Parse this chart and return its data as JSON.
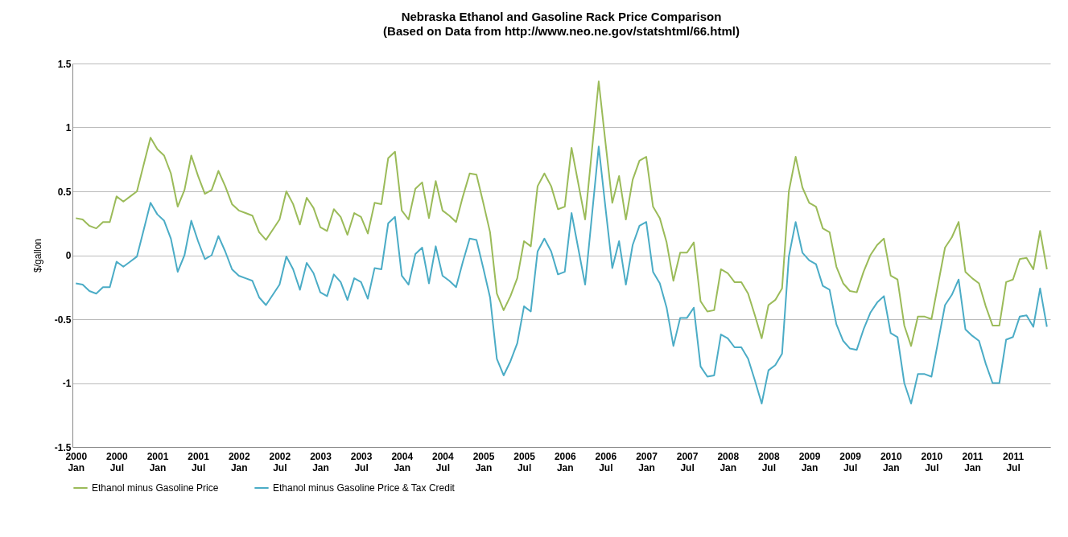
{
  "chart_data": {
    "type": "line",
    "title": "Nebraska Ethanol and Gasoline Rack Price Comparison",
    "subtitle": "(Based on Data from http://www.neo.ne.gov/statshtml/66.html)",
    "ylabel": "$/gallon",
    "categories": [
      "2000 Jan",
      null,
      null,
      null,
      null,
      null,
      "2000 Jul",
      null,
      null,
      null,
      null,
      null,
      "2001 Jan",
      null,
      null,
      null,
      null,
      null,
      "2001 Jul",
      null,
      null,
      null,
      null,
      null,
      "2002 Jan",
      null,
      null,
      null,
      null,
      null,
      "2002 Jul",
      null,
      null,
      null,
      null,
      null,
      "2003 Jan",
      null,
      null,
      null,
      null,
      null,
      "2003 Jul",
      null,
      null,
      null,
      null,
      null,
      "2004 Jan",
      null,
      null,
      null,
      null,
      null,
      "2004 Jul",
      null,
      null,
      null,
      null,
      null,
      "2005 Jan",
      null,
      null,
      null,
      null,
      null,
      "2005 Jul",
      null,
      null,
      null,
      null,
      null,
      "2006 Jan",
      null,
      null,
      null,
      null,
      null,
      "2006 Jul",
      null,
      null,
      null,
      null,
      null,
      "2007 Jan",
      null,
      null,
      null,
      null,
      null,
      "2007 Jul",
      null,
      null,
      null,
      null,
      null,
      "2008 Jan",
      null,
      null,
      null,
      null,
      null,
      "2008 Jul",
      null,
      null,
      null,
      null,
      null,
      "2009 Jan",
      null,
      null,
      null,
      null,
      null,
      "2009 Jul",
      null,
      null,
      null,
      null,
      null,
      "2010 Jan",
      null,
      null,
      null,
      null,
      null,
      "2010 Jul",
      null,
      null,
      null,
      null,
      null,
      "2011 Jan",
      null,
      null,
      null,
      null,
      null,
      "2011 Jul",
      null,
      null,
      null,
      null,
      null
    ],
    "series": [
      {
        "name": "Ethanol minus Gasoline Price",
        "color": "#9bbb59",
        "values": [
          0.29,
          0.28,
          0.23,
          0.21,
          0.26,
          0.26,
          0.46,
          0.42,
          0.46,
          0.5,
          0.71,
          0.92,
          0.83,
          0.78,
          0.64,
          0.38,
          0.51,
          0.78,
          0.62,
          0.48,
          0.51,
          0.66,
          0.54,
          0.4,
          0.35,
          0.33,
          0.31,
          0.18,
          0.12,
          0.2,
          0.28,
          0.5,
          0.4,
          0.24,
          0.45,
          0.37,
          0.22,
          0.19,
          0.36,
          0.3,
          0.16,
          0.33,
          0.3,
          0.17,
          0.41,
          0.4,
          0.76,
          0.81,
          0.35,
          0.28,
          0.52,
          0.57,
          0.29,
          0.58,
          0.35,
          0.31,
          0.26,
          0.46,
          0.64,
          0.63,
          0.41,
          0.18,
          -0.3,
          -0.43,
          -0.32,
          -0.18,
          0.11,
          0.07,
          0.54,
          0.64,
          0.54,
          0.36,
          0.38,
          0.84,
          0.56,
          0.28,
          0.82,
          1.36,
          0.88,
          0.41,
          0.62,
          0.28,
          0.59,
          0.74,
          0.77,
          0.38,
          0.29,
          0.1,
          -0.2,
          0.02,
          0.02,
          0.1,
          -0.36,
          -0.44,
          -0.43,
          -0.11,
          -0.14,
          -0.21,
          -0.21,
          -0.3,
          -0.47,
          -0.65,
          -0.39,
          -0.35,
          -0.26,
          0.5,
          0.77,
          0.53,
          0.41,
          0.38,
          0.21,
          0.18,
          -0.09,
          -0.22,
          -0.28,
          -0.29,
          -0.13,
          0.0,
          0.08,
          0.13,
          -0.16,
          -0.19,
          -0.55,
          -0.71,
          -0.48,
          -0.48,
          -0.5,
          -0.22,
          0.06,
          0.14,
          0.26,
          -0.13,
          -0.18,
          -0.22,
          -0.4,
          -0.55,
          -0.55,
          -0.21,
          -0.19,
          -0.03,
          -0.02,
          -0.11,
          0.19,
          -0.11
        ]
      },
      {
        "name": "Ethanol minus Gasoline Price & Tax Credit",
        "color": "#4bacc6",
        "values": [
          -0.22,
          -0.23,
          -0.28,
          -0.3,
          -0.25,
          -0.25,
          -0.05,
          -0.09,
          -0.05,
          -0.01,
          0.2,
          0.41,
          0.32,
          0.27,
          0.13,
          -0.13,
          0.0,
          0.27,
          0.11,
          -0.03,
          0.0,
          0.15,
          0.03,
          -0.11,
          -0.16,
          -0.18,
          -0.2,
          -0.33,
          -0.39,
          -0.31,
          -0.23,
          -0.01,
          -0.11,
          -0.27,
          -0.06,
          -0.14,
          -0.29,
          -0.32,
          -0.15,
          -0.21,
          -0.35,
          -0.18,
          -0.21,
          -0.34,
          -0.1,
          -0.11,
          0.25,
          0.3,
          -0.16,
          -0.23,
          0.01,
          0.06,
          -0.22,
          0.07,
          -0.16,
          -0.2,
          -0.25,
          -0.05,
          0.13,
          0.12,
          -0.1,
          -0.33,
          -0.81,
          -0.94,
          -0.83,
          -0.69,
          -0.4,
          -0.44,
          0.03,
          0.13,
          0.03,
          -0.15,
          -0.13,
          0.33,
          0.05,
          -0.23,
          0.31,
          0.85,
          0.37,
          -0.1,
          0.11,
          -0.23,
          0.08,
          0.23,
          0.26,
          -0.13,
          -0.22,
          -0.41,
          -0.71,
          -0.49,
          -0.49,
          -0.41,
          -0.87,
          -0.95,
          -0.94,
          -0.62,
          -0.65,
          -0.72,
          -0.72,
          -0.81,
          -0.98,
          -1.16,
          -0.9,
          -0.86,
          -0.77,
          -0.01,
          0.26,
          0.02,
          -0.04,
          -0.07,
          -0.24,
          -0.27,
          -0.54,
          -0.67,
          -0.73,
          -0.74,
          -0.58,
          -0.45,
          -0.37,
          -0.32,
          -0.61,
          -0.64,
          -1.0,
          -1.16,
          -0.93,
          -0.93,
          -0.95,
          -0.67,
          -0.39,
          -0.31,
          -0.19,
          -0.58,
          -0.63,
          -0.67,
          -0.85,
          -1.0,
          -1.0,
          -0.66,
          -0.64,
          -0.48,
          -0.47,
          -0.56,
          -0.26,
          -0.56
        ]
      }
    ],
    "ylim": [
      -1.5,
      1.5
    ],
    "yticks": [
      -1.5,
      -1,
      -0.5,
      0,
      0.5,
      1,
      1.5
    ],
    "grid": "y",
    "legend": "bottom"
  }
}
